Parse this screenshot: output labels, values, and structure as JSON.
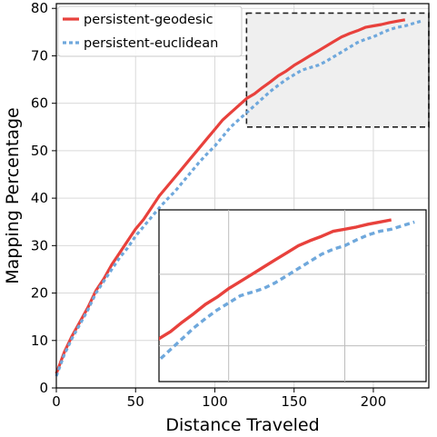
{
  "chart_data": {
    "type": "line",
    "xlabel": "Distance Traveled",
    "ylabel": "Mapping Percentage",
    "xlim": [
      0,
      235
    ],
    "ylim": [
      0,
      81
    ],
    "x_ticks": [
      "0",
      "50",
      "100",
      "150",
      "200"
    ],
    "y_ticks": [
      "0",
      "10",
      "20",
      "30",
      "40",
      "50",
      "60",
      "70",
      "80"
    ],
    "grid": true,
    "legend_position": "top-left",
    "series": [
      {
        "name": "persistent-geodesic",
        "color": "#e8413c",
        "style": "solid",
        "points": [
          [
            0,
            3
          ],
          [
            5,
            7.5
          ],
          [
            10,
            11
          ],
          [
            15,
            14
          ],
          [
            20,
            17
          ],
          [
            25,
            20.5
          ],
          [
            30,
            23
          ],
          [
            35,
            26
          ],
          [
            40,
            28.5
          ],
          [
            45,
            31
          ],
          [
            50,
            33.5
          ],
          [
            55,
            35.5
          ],
          [
            60,
            38
          ],
          [
            65,
            40.5
          ],
          [
            70,
            42.5
          ],
          [
            75,
            44.5
          ],
          [
            80,
            46.5
          ],
          [
            85,
            48.5
          ],
          [
            90,
            50.5
          ],
          [
            95,
            52.5
          ],
          [
            100,
            54.5
          ],
          [
            105,
            56.5
          ],
          [
            110,
            58
          ],
          [
            115,
            59.5
          ],
          [
            120,
            61
          ],
          [
            125,
            62
          ],
          [
            130,
            63.3
          ],
          [
            135,
            64.5
          ],
          [
            140,
            65.8
          ],
          [
            145,
            66.8
          ],
          [
            150,
            68
          ],
          [
            155,
            69
          ],
          [
            160,
            70
          ],
          [
            165,
            71
          ],
          [
            170,
            72
          ],
          [
            175,
            73
          ],
          [
            180,
            74
          ],
          [
            185,
            74.7
          ],
          [
            190,
            75.3
          ],
          [
            195,
            76
          ],
          [
            200,
            76.3
          ],
          [
            205,
            76.6
          ],
          [
            210,
            77
          ],
          [
            215,
            77.3
          ],
          [
            220,
            77.6
          ]
        ]
      },
      {
        "name": "persistent-euclidean",
        "color": "#6fa8dc",
        "style": "dotted",
        "points": [
          [
            0,
            2.5
          ],
          [
            5,
            7
          ],
          [
            10,
            10.5
          ],
          [
            15,
            13.5
          ],
          [
            20,
            16.5
          ],
          [
            25,
            20
          ],
          [
            30,
            22.5
          ],
          [
            35,
            25
          ],
          [
            40,
            27.5
          ],
          [
            45,
            29.5
          ],
          [
            50,
            32
          ],
          [
            55,
            34
          ],
          [
            60,
            36
          ],
          [
            65,
            38
          ],
          [
            70,
            39.8
          ],
          [
            75,
            41.5
          ],
          [
            80,
            43.5
          ],
          [
            85,
            45.5
          ],
          [
            90,
            47.5
          ],
          [
            95,
            49.3
          ],
          [
            100,
            51
          ],
          [
            105,
            53
          ],
          [
            110,
            55
          ],
          [
            115,
            56.5
          ],
          [
            120,
            58
          ],
          [
            125,
            59.5
          ],
          [
            130,
            61
          ],
          [
            135,
            62.5
          ],
          [
            140,
            63.8
          ],
          [
            145,
            65
          ],
          [
            150,
            66
          ],
          [
            155,
            67
          ],
          [
            160,
            67.5
          ],
          [
            165,
            68
          ],
          [
            170,
            68.8
          ],
          [
            175,
            69.8
          ],
          [
            180,
            70.8
          ],
          [
            185,
            71.8
          ],
          [
            190,
            72.8
          ],
          [
            195,
            73.5
          ],
          [
            200,
            74
          ],
          [
            205,
            74.8
          ],
          [
            210,
            75.5
          ],
          [
            215,
            76
          ],
          [
            220,
            76.3
          ],
          [
            225,
            76.8
          ],
          [
            230,
            77.3
          ]
        ]
      }
    ],
    "zoom_box": {
      "x": [
        120,
        235
      ],
      "y": [
        55,
        79
      ]
    }
  }
}
